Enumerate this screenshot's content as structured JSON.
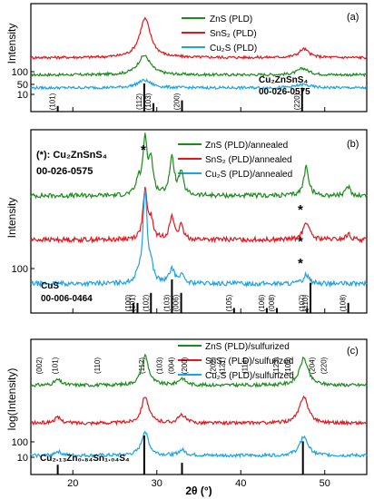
{
  "figure": {
    "xlabel": "2θ (°)",
    "x_ticks": [
      20,
      30,
      40,
      50
    ]
  },
  "chart_data": [
    {
      "type": "line",
      "panel": "(a)",
      "xlim": [
        15,
        55
      ],
      "xlabel": "",
      "ylabel": "Intensity",
      "y_ticks": [
        10,
        50,
        100
      ],
      "legend": {
        "placement": "top-center",
        "entries": [
          {
            "name": "ZnS (PLD)",
            "color": "#1a8c1a"
          },
          {
            "name": "SnS₂ (PLD)",
            "color": "#e8141c"
          },
          {
            "name": "Cu₂S (PLD)",
            "color": "#1aa3e8"
          }
        ]
      },
      "reference": {
        "name": "Cu₂ZnSnS₄",
        "card": "00-026-0575"
      },
      "reference_peaks": [
        {
          "x": 18.2,
          "label": "(101)",
          "rel": 0.2
        },
        {
          "x": 28.5,
          "label": "(112)",
          "rel": 1.0
        },
        {
          "x": 29.6,
          "label": "(103)",
          "rel": 0.3
        },
        {
          "x": 33.0,
          "label": "(200)",
          "rel": 0.4
        },
        {
          "x": 47.3,
          "label": "(220)",
          "rel": 0.85
        }
      ],
      "series": [
        {
          "name": "ZnS (PLD)",
          "color": "#1a8c1a",
          "baseline": 0.34,
          "peaks": [
            {
              "x": 28.5,
              "h": 0.18,
              "w": 0.9
            },
            {
              "x": 47.4,
              "h": 0.06,
              "w": 0.8
            }
          ]
        },
        {
          "name": "SnS₂ (PLD)",
          "color": "#e8141c",
          "baseline": 0.5,
          "peaks": [
            {
              "x": 28.6,
              "h": 0.36,
              "w": 0.8
            },
            {
              "x": 47.5,
              "h": 0.08,
              "w": 0.7
            }
          ]
        },
        {
          "name": "Cu₂S (PLD)",
          "color": "#1aa3e8",
          "baseline": 0.22,
          "peaks": [
            {
              "x": 28.5,
              "h": 0.07,
              "w": 1.0
            },
            {
              "x": 47.4,
              "h": 0.03,
              "w": 1.0
            }
          ]
        }
      ]
    },
    {
      "type": "line",
      "panel": "(b)",
      "xlim": [
        15,
        55
      ],
      "xlabel": "",
      "ylabel": "Intensity",
      "y_ticks": [
        100
      ],
      "legend": {
        "placement": "top-right",
        "entries": [
          {
            "name": "ZnS (PLD)/annealed",
            "color": "#1a8c1a"
          },
          {
            "name": "SnS₂ (PLD)/annealed",
            "color": "#e8141c"
          },
          {
            "name": "Cu₂S (PLD)/annealed",
            "color": "#1aa3e8"
          }
        ]
      },
      "annotations": [
        "(*): Cu₂ZnSnS₄",
        "00-026-0575",
        "*",
        "*",
        "*",
        "*"
      ],
      "reference": {
        "name": "CuS",
        "card": "00-006-0464"
      },
      "reference_peaks": [
        {
          "x": 27.2,
          "label": "(100)",
          "rel": 0.3
        },
        {
          "x": 27.7,
          "label": "(101)",
          "rel": 0.3
        },
        {
          "x": 29.3,
          "label": "(102)",
          "rel": 0.6
        },
        {
          "x": 31.8,
          "label": "(103)",
          "rel": 1.0
        },
        {
          "x": 32.9,
          "label": "(006)",
          "rel": 0.6
        },
        {
          "x": 39.2,
          "label": "(105)",
          "rel": 0.15
        },
        {
          "x": 43.1,
          "label": "(106)",
          "rel": 0.15
        },
        {
          "x": 44.3,
          "label": "(008)",
          "rel": 0.15
        },
        {
          "x": 47.9,
          "label": "(107)",
          "rel": 0.15
        },
        {
          "x": 48.3,
          "label": "(110)",
          "rel": 0.9
        },
        {
          "x": 52.8,
          "label": "(108)",
          "rel": 0.3
        }
      ],
      "series": [
        {
          "name": "ZnS (PLD)/annealed",
          "color": "#1a8c1a",
          "baseline": 0.64,
          "peaks": [
            {
              "x": 27.8,
              "h": 0.08,
              "w": 0.3
            },
            {
              "x": 28.6,
              "h": 0.3,
              "w": 0.3
            },
            {
              "x": 29.3,
              "h": 0.18,
              "w": 0.3
            },
            {
              "x": 31.8,
              "h": 0.2,
              "w": 0.35
            },
            {
              "x": 32.9,
              "h": 0.12,
              "w": 0.3
            },
            {
              "x": 47.8,
              "h": 0.16,
              "w": 0.35
            },
            {
              "x": 52.8,
              "h": 0.05,
              "w": 0.3
            }
          ]
        },
        {
          "name": "SnS₂ (PLD)/annealed",
          "color": "#e8141c",
          "baseline": 0.4,
          "peaks": [
            {
              "x": 28.6,
              "h": 0.26,
              "w": 0.3
            },
            {
              "x": 29.3,
              "h": 0.1,
              "w": 0.3
            },
            {
              "x": 31.8,
              "h": 0.12,
              "w": 0.35
            },
            {
              "x": 32.9,
              "h": 0.07,
              "w": 0.3
            },
            {
              "x": 47.8,
              "h": 0.1,
              "w": 0.4
            },
            {
              "x": 52.8,
              "h": 0.03,
              "w": 0.3
            }
          ]
        },
        {
          "name": "Cu₂S (PLD)/annealed",
          "color": "#1aa3e8",
          "baseline": 0.16,
          "peaks": [
            {
              "x": 27.8,
              "h": 0.04,
              "w": 0.3
            },
            {
              "x": 28.6,
              "h": 0.5,
              "w": 0.3
            },
            {
              "x": 29.3,
              "h": 0.08,
              "w": 0.3
            },
            {
              "x": 31.8,
              "h": 0.08,
              "w": 0.35
            },
            {
              "x": 32.9,
              "h": 0.05,
              "w": 0.3
            },
            {
              "x": 47.8,
              "h": 0.05,
              "w": 0.4
            }
          ]
        }
      ]
    },
    {
      "type": "line",
      "panel": "(c)",
      "xlim": [
        15,
        55
      ],
      "xlabel": "2θ (°)",
      "ylabel": "log(Intensity)",
      "y_ticks": [
        10,
        100
      ],
      "legend": {
        "placement": "top-right",
        "entries": [
          {
            "name": "ZnS (PLD)/sulfurized",
            "color": "#1a8c1a"
          },
          {
            "name": "SnS₂ (PLD)/sulfurized",
            "color": "#e8141c"
          },
          {
            "name": "Cu₂S (PLD)/sulfurized",
            "color": "#1aa3e8"
          }
        ]
      },
      "reference": {
        "name": "Cu₂.₁₃Zn₀.₈₄Sn₁.₀₄S₄"
      },
      "peak_labels": [
        {
          "x": 16.3,
          "label": "(002)"
        },
        {
          "x": 18.2,
          "label": "(101)"
        },
        {
          "x": 23.2,
          "label": "(110)"
        },
        {
          "x": 28.5,
          "label": "(112)"
        },
        {
          "x": 30.6,
          "label": "(103)"
        },
        {
          "x": 32.0,
          "label": "(004)"
        },
        {
          "x": 33.6,
          "label": "(200)"
        },
        {
          "x": 37.0,
          "label": "(202)"
        },
        {
          "x": 38.1,
          "label": "(121)"
        },
        {
          "x": 40.8,
          "label": "(114)"
        },
        {
          "x": 44.5,
          "label": "(123)"
        },
        {
          "x": 45.9,
          "label": "(105)"
        },
        {
          "x": 48.8,
          "label": "(204)"
        },
        {
          "x": 50.2,
          "label": "(220)"
        }
      ],
      "reference_peaks": [
        {
          "x": 18.2,
          "rel": 0.25
        },
        {
          "x": 28.5,
          "rel": 1.0
        },
        {
          "x": 33.0,
          "rel": 0.3
        },
        {
          "x": 47.4,
          "rel": 0.85
        }
      ],
      "series": [
        {
          "name": "ZnS (PLD)/sulfurized",
          "color": "#1a8c1a",
          "baseline": 0.66,
          "peaks": [
            {
              "x": 18.2,
              "h": 0.04,
              "w": 0.5
            },
            {
              "x": 28.6,
              "h": 0.22,
              "w": 0.5
            },
            {
              "x": 33.0,
              "h": 0.05,
              "w": 0.5
            },
            {
              "x": 47.5,
              "h": 0.2,
              "w": 0.6
            }
          ]
        },
        {
          "name": "SnS₂ (PLD)/sulfurized",
          "color": "#e8141c",
          "baseline": 0.38,
          "peaks": [
            {
              "x": 18.2,
              "h": 0.04,
              "w": 0.5
            },
            {
              "x": 28.6,
              "h": 0.2,
              "w": 0.5
            },
            {
              "x": 33.0,
              "h": 0.06,
              "w": 0.5
            },
            {
              "x": 47.5,
              "h": 0.2,
              "w": 0.6
            }
          ]
        },
        {
          "name": "Cu₂S (PLD)/sulfurized",
          "color": "#1aa3e8",
          "baseline": 0.14,
          "peaks": [
            {
              "x": 18.2,
              "h": 0.03,
              "w": 0.5
            },
            {
              "x": 28.6,
              "h": 0.18,
              "w": 0.5
            },
            {
              "x": 33.0,
              "h": 0.04,
              "w": 0.5
            },
            {
              "x": 47.5,
              "h": 0.14,
              "w": 0.6
            }
          ]
        }
      ]
    }
  ]
}
